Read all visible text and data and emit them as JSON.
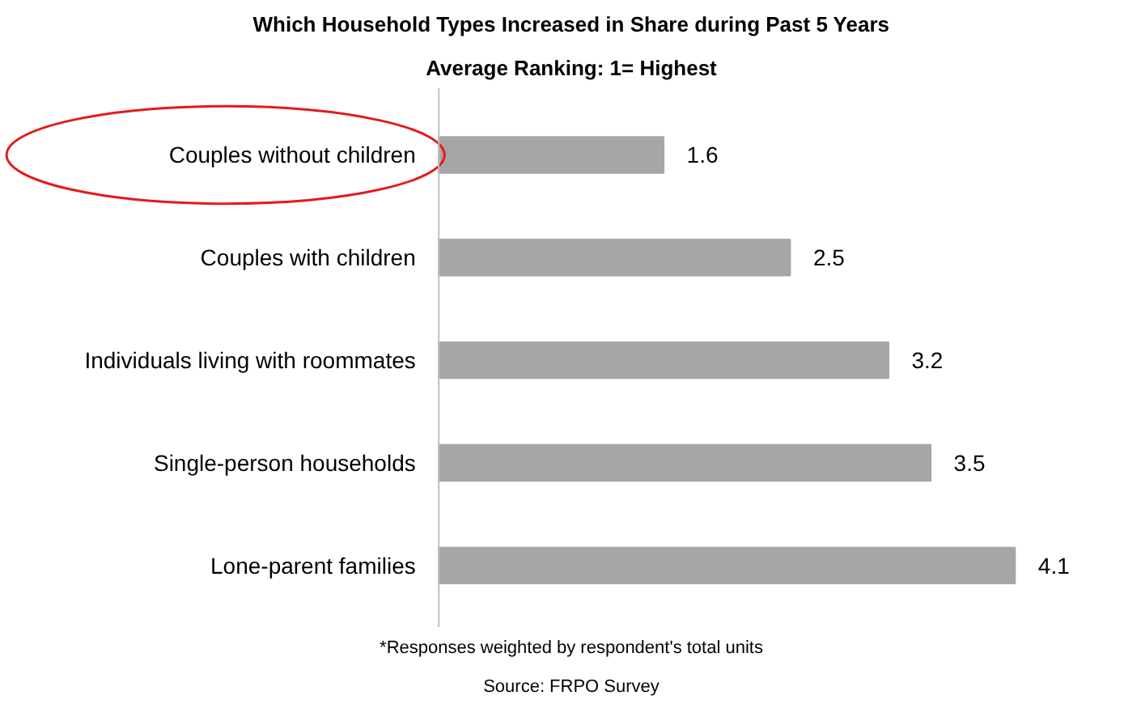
{
  "chart_data": {
    "type": "bar",
    "orientation": "horizontal",
    "title": "Which Household Types Increased in Share during Past 5 Years",
    "subtitle": "Average Ranking: 1= Highest",
    "categories": [
      "Couples without children",
      "Couples with children",
      "Individuals living with roommates",
      "Single-person households",
      "Lone-parent families"
    ],
    "values": [
      1.6,
      2.5,
      3.2,
      3.5,
      4.1
    ],
    "color": "#a6a6a6",
    "data_labels": true,
    "grid": false,
    "annotations": [
      "*Responses weighted by respondent's total units",
      "Source: FRPO Survey"
    ]
  }
}
